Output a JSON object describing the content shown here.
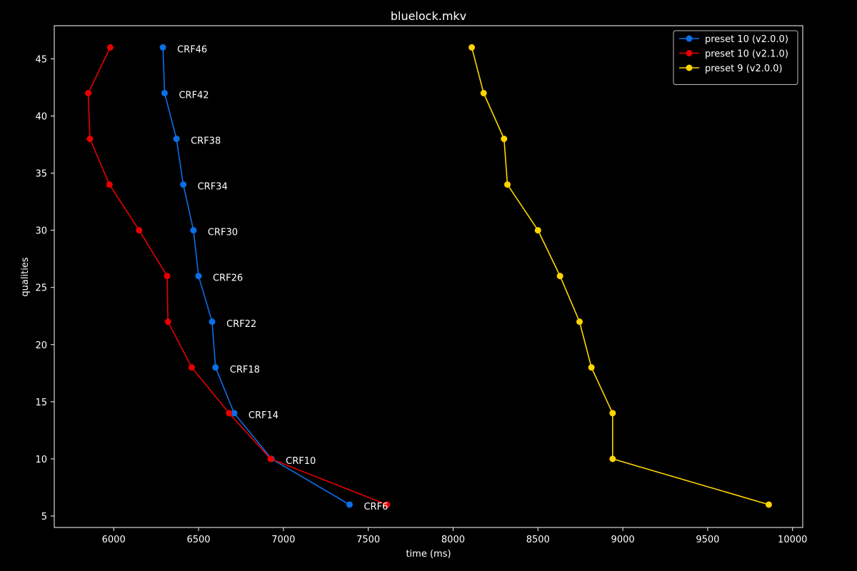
{
  "chart_data": {
    "type": "line",
    "title": "bluelock.mkv",
    "xlabel": "time (ms)",
    "ylabel": "qualities",
    "xlim": [
      5650,
      10060
    ],
    "ylim": [
      4,
      47.9
    ],
    "xticks": [
      6000,
      6500,
      7000,
      7500,
      8000,
      8500,
      9000,
      9500,
      10000
    ],
    "yticks": [
      5,
      10,
      15,
      20,
      25,
      30,
      35,
      40,
      45
    ],
    "grid": false,
    "legend_position": "top-right",
    "series": [
      {
        "name": "preset 10 (v2.0.0)",
        "color": "#0a6fe8",
        "points": [
          {
            "x": 6290,
            "y": 46
          },
          {
            "x": 6300,
            "y": 42
          },
          {
            "x": 6370,
            "y": 38
          },
          {
            "x": 6410,
            "y": 34
          },
          {
            "x": 6470,
            "y": 30
          },
          {
            "x": 6500,
            "y": 26
          },
          {
            "x": 6580,
            "y": 22
          },
          {
            "x": 6600,
            "y": 18
          },
          {
            "x": 6710,
            "y": 14
          },
          {
            "x": 6930,
            "y": 10
          },
          {
            "x": 7390,
            "y": 6
          }
        ]
      },
      {
        "name": "preset 10 (v2.1.0)",
        "color": "#e80000",
        "points": [
          {
            "x": 5980,
            "y": 46
          },
          {
            "x": 5850,
            "y": 42
          },
          {
            "x": 5860,
            "y": 38
          },
          {
            "x": 5975,
            "y": 34
          },
          {
            "x": 6150,
            "y": 30
          },
          {
            "x": 6315,
            "y": 26
          },
          {
            "x": 6320,
            "y": 22
          },
          {
            "x": 6460,
            "y": 18
          },
          {
            "x": 6680,
            "y": 14
          },
          {
            "x": 6925,
            "y": 10
          },
          {
            "x": 7610,
            "y": 6
          }
        ]
      },
      {
        "name": "preset 9 (v2.0.0)",
        "color": "#ffd500",
        "points": [
          {
            "x": 8110,
            "y": 46
          },
          {
            "x": 8180,
            "y": 42
          },
          {
            "x": 8300,
            "y": 38
          },
          {
            "x": 8320,
            "y": 34
          },
          {
            "x": 8500,
            "y": 30
          },
          {
            "x": 8630,
            "y": 26
          },
          {
            "x": 8745,
            "y": 22
          },
          {
            "x": 8815,
            "y": 18
          },
          {
            "x": 8940,
            "y": 14
          },
          {
            "x": 8940,
            "y": 10
          },
          {
            "x": 9860,
            "y": 6
          }
        ]
      }
    ],
    "annotations": [
      {
        "text": "CRF46",
        "x": 6290,
        "y": 46
      },
      {
        "text": "CRF42",
        "x": 6300,
        "y": 42
      },
      {
        "text": "CRF38",
        "x": 6370,
        "y": 38
      },
      {
        "text": "CRF34",
        "x": 6410,
        "y": 34
      },
      {
        "text": "CRF30",
        "x": 6470,
        "y": 30
      },
      {
        "text": "CRF26",
        "x": 6500,
        "y": 26
      },
      {
        "text": "CRF22",
        "x": 6580,
        "y": 22
      },
      {
        "text": "CRF18",
        "x": 6600,
        "y": 18
      },
      {
        "text": "CRF14",
        "x": 6710,
        "y": 14
      },
      {
        "text": "CRF10",
        "x": 6930,
        "y": 10
      },
      {
        "text": "CRF6",
        "x": 7390,
        "y": 6
      }
    ]
  }
}
